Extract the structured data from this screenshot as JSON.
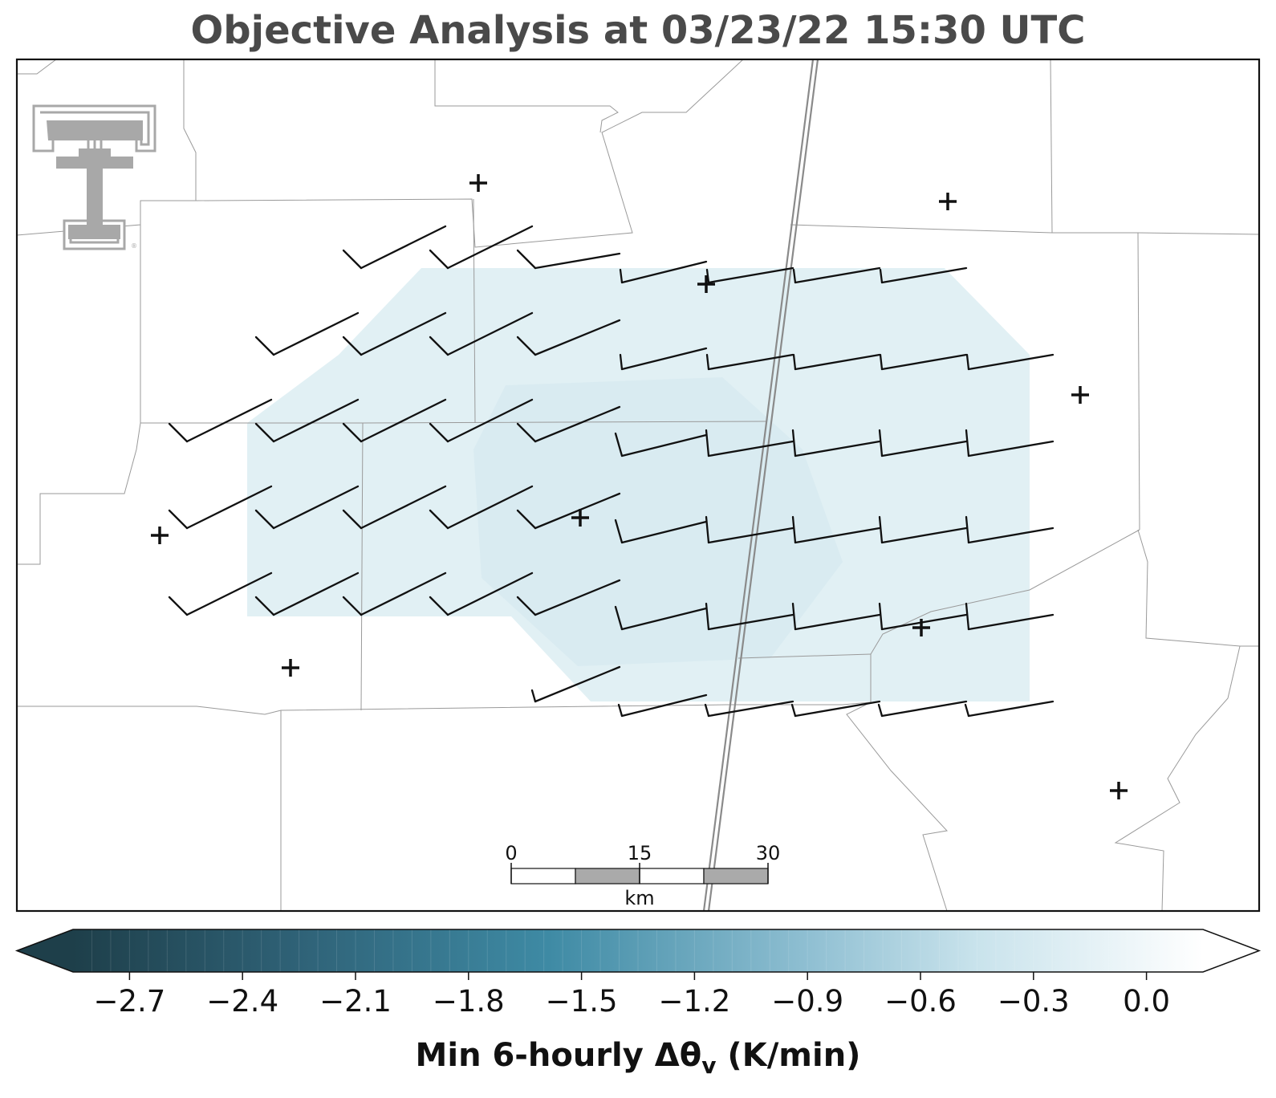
{
  "title": "Objective Analysis at 03/23/22 15:30 UTC",
  "colorbar": {
    "label_main": "Min 6-hourly Δθ",
    "label_sub": "v",
    "label_units": " (K/min)",
    "ticks": [
      "−2.7",
      "−2.4",
      "−2.1",
      "−1.8",
      "−1.5",
      "−1.2",
      "−0.9",
      "−0.6",
      "−0.3",
      "0.0"
    ],
    "range": [
      -2.85,
      0.15
    ],
    "colormap": [
      "#1e3f4a",
      "#2f6277",
      "#3e8aa4",
      "#8fbfd2",
      "#c9e3ec",
      "#ffffff"
    ]
  },
  "scale_bar": {
    "labels": [
      "0",
      "15",
      "30"
    ],
    "unit": "km"
  },
  "logo": {
    "name": "Texas Tech double-T",
    "text": "®"
  },
  "colors": {
    "fill": "#dcedf2",
    "border": "#999999",
    "barb": "#111111",
    "dryline": "#8a8a8a"
  },
  "stations_marker": "+"
}
